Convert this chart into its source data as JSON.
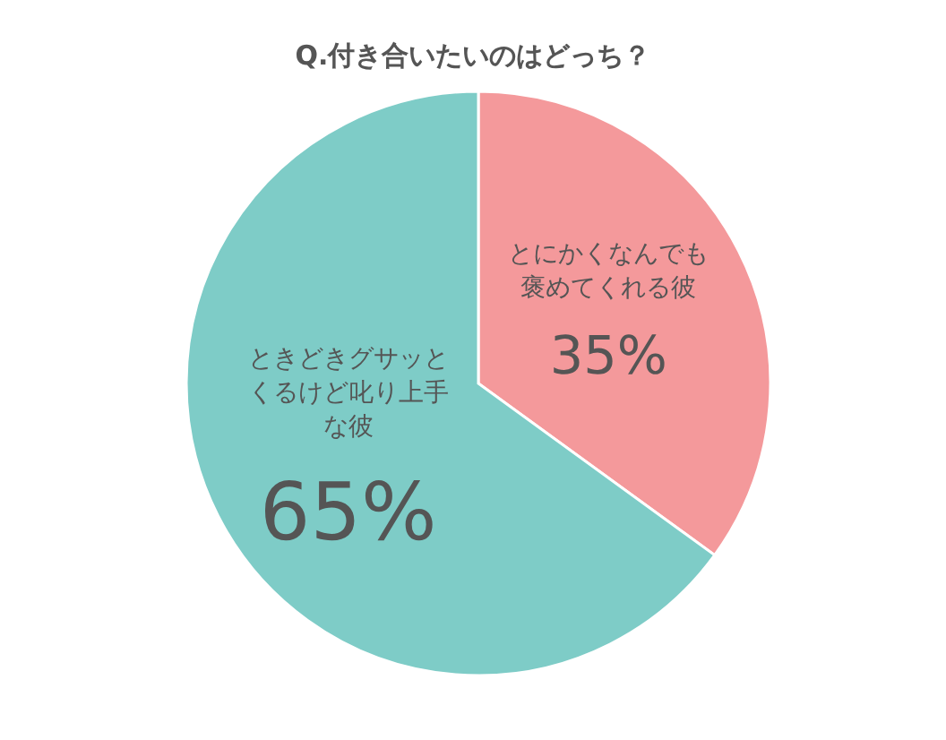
{
  "chart_data": {
    "type": "pie",
    "title": "Q.付き合いたいのはどっち？",
    "categories": [
      "とにかくなんでも褒めてくれる彼",
      "ときどきグサッとくるけど叱り上手な彼"
    ],
    "values": [
      35,
      65
    ],
    "colors": [
      "#f4999b",
      "#7eccc7"
    ],
    "value_labels": [
      "35%",
      "65%"
    ]
  }
}
